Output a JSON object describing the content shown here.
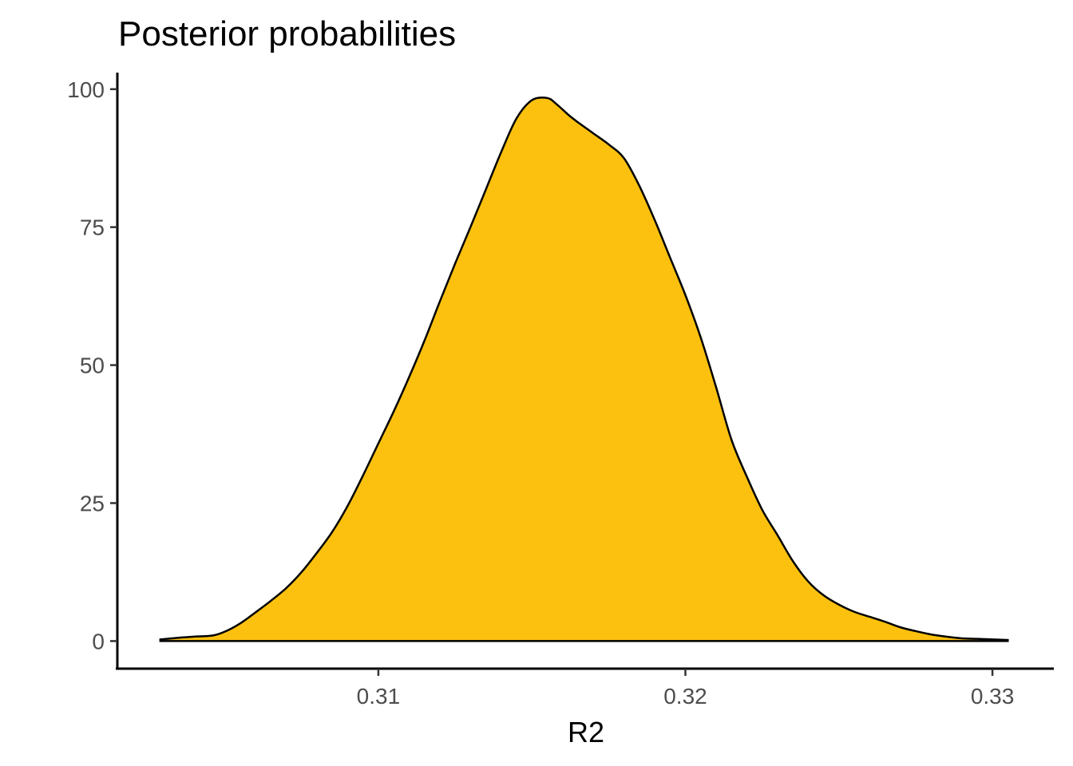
{
  "chart_data": {
    "type": "area",
    "title": "Posterior probabilities",
    "xlabel": "R2",
    "ylabel": "",
    "xlim": [
      0.3015,
      0.332
    ],
    "ylim": [
      -5,
      103
    ],
    "x_ticks": [
      0.31,
      0.32,
      0.33
    ],
    "x_tick_labels": [
      "0.31",
      "0.32",
      "0.33"
    ],
    "y_ticks": [
      0,
      25,
      50,
      75,
      100
    ],
    "y_tick_labels": [
      "0",
      "25",
      "50",
      "75",
      "100"
    ],
    "grid": false,
    "legend": "none",
    "fill_color": "#FCC10F",
    "line_color": "#000000",
    "series": [
      {
        "x": [
          0.3029,
          0.3035,
          0.304,
          0.3046,
          0.305,
          0.3055,
          0.306,
          0.3065,
          0.307,
          0.3075,
          0.308,
          0.3085,
          0.309,
          0.3095,
          0.31,
          0.3105,
          0.311,
          0.3115,
          0.312,
          0.3125,
          0.313,
          0.3135,
          0.314,
          0.3145,
          0.315,
          0.3155,
          0.3158,
          0.3162,
          0.3165,
          0.317,
          0.3175,
          0.318,
          0.3185,
          0.319,
          0.3195,
          0.32,
          0.3205,
          0.321,
          0.3215,
          0.322,
          0.3225,
          0.323,
          0.3235,
          0.324,
          0.3245,
          0.325,
          0.3255,
          0.326,
          0.3265,
          0.327,
          0.3275,
          0.328,
          0.3285,
          0.329,
          0.3295,
          0.33,
          0.3305
        ],
        "y": [
          0.3,
          0.6,
          0.8,
          1.0,
          1.7,
          3.2,
          5.2,
          7.3,
          9.6,
          12.5,
          16.0,
          19.8,
          24.5,
          30.0,
          35.8,
          41.6,
          47.8,
          54.4,
          61.5,
          68.4,
          75.0,
          81.8,
          88.6,
          94.7,
          98.0,
          98.4,
          97.3,
          95.3,
          94.0,
          92.0,
          90.0,
          87.5,
          82.5,
          76.3,
          69.5,
          62.7,
          55.0,
          46.0,
          36.5,
          29.8,
          23.8,
          19.2,
          14.5,
          10.8,
          8.3,
          6.6,
          5.3,
          4.4,
          3.5,
          2.5,
          1.8,
          1.2,
          0.8,
          0.5,
          0.4,
          0.3,
          0.2
        ]
      }
    ]
  }
}
